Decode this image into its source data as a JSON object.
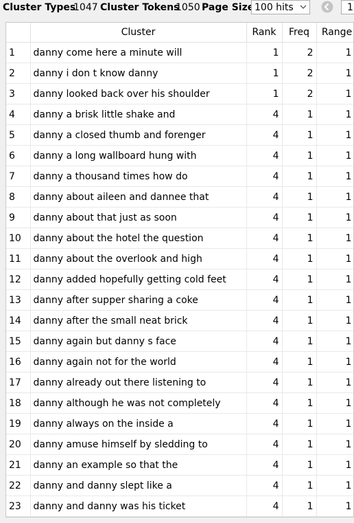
{
  "toolbar": {
    "cluster_types_label": "Cluster Types",
    "cluster_types_value": "1047",
    "cluster_tokens_label": "Cluster Tokens",
    "cluster_tokens_value": "1050",
    "page_size_label": "Page Size",
    "page_size_value": "100 hits",
    "page_number": "1"
  },
  "table": {
    "headers": {
      "cluster": "Cluster",
      "rank": "Rank",
      "freq": "Freq",
      "range": "Range"
    },
    "rows": [
      {
        "idx": "1",
        "cluster": "danny come here a minute will",
        "rank": "1",
        "freq": "2",
        "range": "1"
      },
      {
        "idx": "2",
        "cluster": "danny i don t know danny",
        "rank": "1",
        "freq": "2",
        "range": "1"
      },
      {
        "idx": "3",
        "cluster": "danny looked back over his shoulder",
        "rank": "1",
        "freq": "2",
        "range": "1"
      },
      {
        "idx": "4",
        "cluster": "danny a brisk little shake and",
        "rank": "4",
        "freq": "1",
        "range": "1"
      },
      {
        "idx": "5",
        "cluster": "danny a closed thumb and forenger",
        "rank": "4",
        "freq": "1",
        "range": "1"
      },
      {
        "idx": "6",
        "cluster": "danny a long wallboard hung with",
        "rank": "4",
        "freq": "1",
        "range": "1"
      },
      {
        "idx": "7",
        "cluster": "danny a thousand times how do",
        "rank": "4",
        "freq": "1",
        "range": "1"
      },
      {
        "idx": "8",
        "cluster": "danny about aileen and dannee that",
        "rank": "4",
        "freq": "1",
        "range": "1"
      },
      {
        "idx": "9",
        "cluster": "danny about that just as soon",
        "rank": "4",
        "freq": "1",
        "range": "1"
      },
      {
        "idx": "10",
        "cluster": "danny about the hotel the question",
        "rank": "4",
        "freq": "1",
        "range": "1"
      },
      {
        "idx": "11",
        "cluster": "danny about the overlook and high",
        "rank": "4",
        "freq": "1",
        "range": "1"
      },
      {
        "idx": "12",
        "cluster": "danny added hopefully getting cold feet",
        "rank": "4",
        "freq": "1",
        "range": "1"
      },
      {
        "idx": "13",
        "cluster": "danny after supper sharing a coke",
        "rank": "4",
        "freq": "1",
        "range": "1"
      },
      {
        "idx": "14",
        "cluster": "danny after the small neat brick",
        "rank": "4",
        "freq": "1",
        "range": "1"
      },
      {
        "idx": "15",
        "cluster": "danny again but danny s face",
        "rank": "4",
        "freq": "1",
        "range": "1"
      },
      {
        "idx": "16",
        "cluster": "danny again not for the world",
        "rank": "4",
        "freq": "1",
        "range": "1"
      },
      {
        "idx": "17",
        "cluster": "danny already out there listening to",
        "rank": "4",
        "freq": "1",
        "range": "1"
      },
      {
        "idx": "18",
        "cluster": "danny although he was not completely",
        "rank": "4",
        "freq": "1",
        "range": "1"
      },
      {
        "idx": "19",
        "cluster": "danny always on the inside a",
        "rank": "4",
        "freq": "1",
        "range": "1"
      },
      {
        "idx": "20",
        "cluster": "danny amuse himself by sledding to",
        "rank": "4",
        "freq": "1",
        "range": "1"
      },
      {
        "idx": "21",
        "cluster": "danny an example so that the",
        "rank": "4",
        "freq": "1",
        "range": "1"
      },
      {
        "idx": "22",
        "cluster": "danny and danny slept like a",
        "rank": "4",
        "freq": "1",
        "range": "1"
      },
      {
        "idx": "23",
        "cluster": "danny and danny was his ticket",
        "rank": "4",
        "freq": "1",
        "range": "1"
      }
    ]
  }
}
